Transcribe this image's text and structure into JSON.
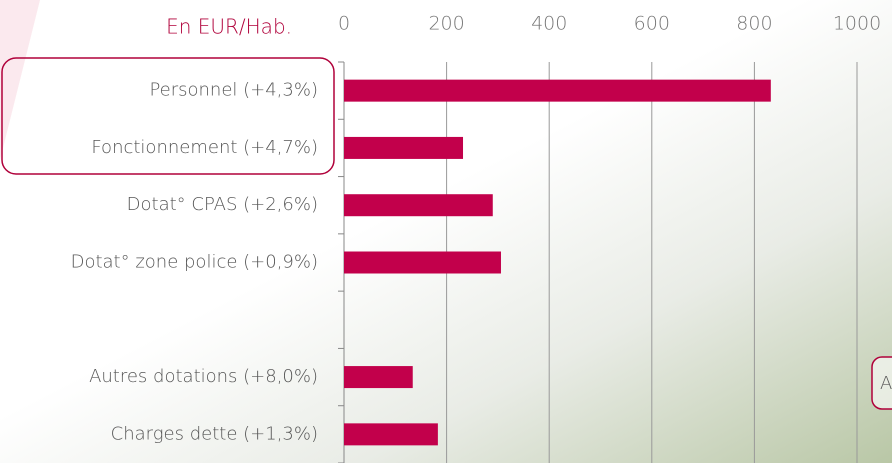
{
  "chart_data": {
    "type": "hbar",
    "axis_label": "En EUR/Hab.",
    "categories": [
      "Personnel (+4,3%)",
      "Fonctionnement (+4,7%)",
      "Dotat° CPAS (+2,6%)",
      "Dotat° zone police (+0,9%)",
      null,
      "Autres dotations (+8,0%)",
      "Charges dette (+1,3%)"
    ],
    "values": [
      832,
      232,
      290,
      306,
      null,
      134,
      183
    ],
    "color": "#c2004b",
    "xlim": [
      0,
      1000
    ],
    "xticks": [
      0,
      200,
      400,
      600,
      800,
      1000
    ],
    "grid": true,
    "annotation": "A"
  }
}
